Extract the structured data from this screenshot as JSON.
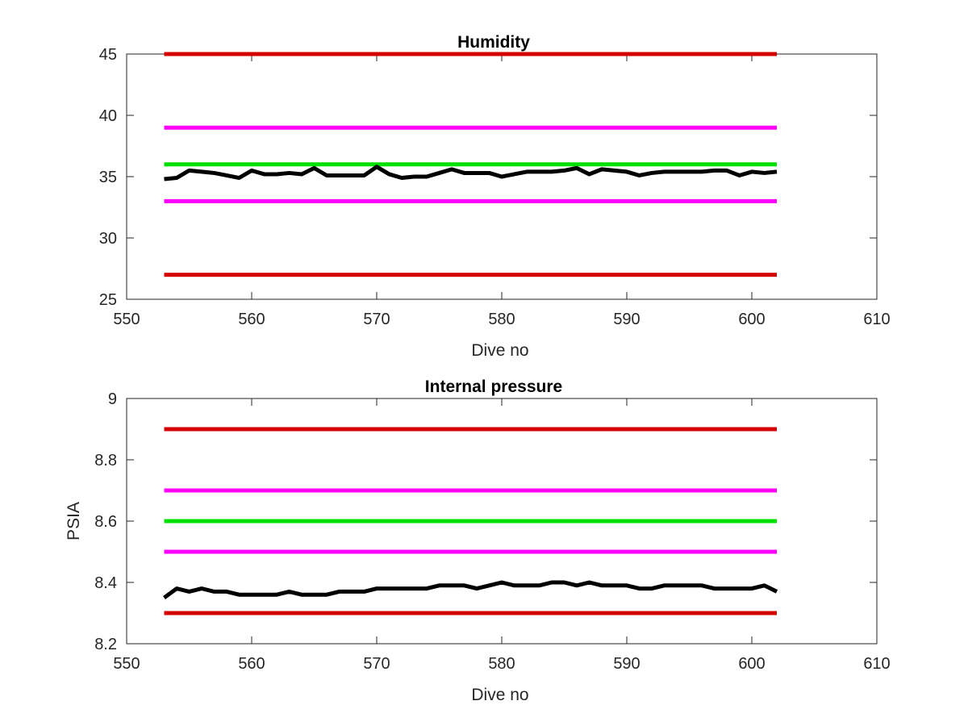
{
  "chart_data": [
    {
      "type": "line",
      "title": "Humidity",
      "xlabel": "Dive no",
      "ylabel": "",
      "xlim": [
        550,
        610
      ],
      "ylim": [
        25,
        45
      ],
      "xticks": [
        "550",
        "560",
        "570",
        "580",
        "590",
        "600",
        "610"
      ],
      "yticks": [
        "25",
        "30",
        "35",
        "40",
        "45"
      ],
      "grid": false,
      "series": [
        {
          "color": "#d40000",
          "x": [
            553,
            602
          ],
          "y": [
            45,
            45
          ]
        },
        {
          "color": "#ff00ff",
          "x": [
            553,
            602
          ],
          "y": [
            39,
            39
          ]
        },
        {
          "color": "#00e000",
          "x": [
            553,
            602
          ],
          "y": [
            36,
            36
          ]
        },
        {
          "color": "#ff00ff",
          "x": [
            553,
            602
          ],
          "y": [
            33,
            33
          ]
        },
        {
          "color": "#d40000",
          "x": [
            553,
            602
          ],
          "y": [
            27,
            27
          ]
        },
        {
          "color": "#000000",
          "x": [
            553,
            554,
            555,
            556,
            557,
            558,
            559,
            560,
            561,
            562,
            563,
            564,
            565,
            566,
            567,
            568,
            569,
            570,
            571,
            572,
            573,
            574,
            575,
            576,
            577,
            578,
            579,
            580,
            581,
            582,
            583,
            584,
            585,
            586,
            587,
            588,
            589,
            590,
            591,
            592,
            593,
            594,
            595,
            596,
            597,
            598,
            599,
            600,
            601,
            602
          ],
          "y": [
            34.8,
            34.9,
            35.5,
            35.4,
            35.3,
            35.1,
            34.9,
            35.5,
            35.2,
            35.2,
            35.3,
            35.2,
            35.7,
            35.1,
            35.1,
            35.1,
            35.1,
            35.8,
            35.2,
            34.9,
            35.0,
            35.0,
            35.3,
            35.6,
            35.3,
            35.3,
            35.3,
            35.0,
            35.2,
            35.4,
            35.4,
            35.4,
            35.5,
            35.7,
            35.2,
            35.6,
            35.5,
            35.4,
            35.1,
            35.3,
            35.4,
            35.4,
            35.4,
            35.4,
            35.5,
            35.5,
            35.1,
            35.4,
            35.3,
            35.4
          ]
        }
      ]
    },
    {
      "type": "line",
      "title": "Internal pressure",
      "xlabel": "Dive no",
      "ylabel": "PSIA",
      "xlim": [
        550,
        610
      ],
      "ylim": [
        8.2,
        9
      ],
      "xticks": [
        "550",
        "560",
        "570",
        "580",
        "590",
        "600",
        "610"
      ],
      "yticks": [
        "8.2",
        "8.4",
        "8.6",
        "8.8",
        "9"
      ],
      "grid": false,
      "series": [
        {
          "color": "#d40000",
          "x": [
            553,
            602
          ],
          "y": [
            8.9,
            8.9
          ]
        },
        {
          "color": "#ff00ff",
          "x": [
            553,
            602
          ],
          "y": [
            8.7,
            8.7
          ]
        },
        {
          "color": "#00e000",
          "x": [
            553,
            602
          ],
          "y": [
            8.6,
            8.6
          ]
        },
        {
          "color": "#ff00ff",
          "x": [
            553,
            602
          ],
          "y": [
            8.5,
            8.5
          ]
        },
        {
          "color": "#d40000",
          "x": [
            553,
            602
          ],
          "y": [
            8.3,
            8.3
          ]
        },
        {
          "color": "#000000",
          "x": [
            553,
            554,
            555,
            556,
            557,
            558,
            559,
            560,
            561,
            562,
            563,
            564,
            565,
            566,
            567,
            568,
            569,
            570,
            571,
            572,
            573,
            574,
            575,
            576,
            577,
            578,
            579,
            580,
            581,
            582,
            583,
            584,
            585,
            586,
            587,
            588,
            589,
            590,
            591,
            592,
            593,
            594,
            595,
            596,
            597,
            598,
            599,
            600,
            601,
            602
          ],
          "y": [
            8.35,
            8.38,
            8.37,
            8.38,
            8.37,
            8.37,
            8.36,
            8.36,
            8.36,
            8.36,
            8.37,
            8.36,
            8.36,
            8.36,
            8.37,
            8.37,
            8.37,
            8.38,
            8.38,
            8.38,
            8.38,
            8.38,
            8.39,
            8.39,
            8.39,
            8.38,
            8.39,
            8.4,
            8.39,
            8.39,
            8.39,
            8.4,
            8.4,
            8.39,
            8.4,
            8.39,
            8.39,
            8.39,
            8.38,
            8.38,
            8.39,
            8.39,
            8.39,
            8.39,
            8.38,
            8.38,
            8.38,
            8.38,
            8.39,
            8.37
          ]
        }
      ]
    }
  ]
}
